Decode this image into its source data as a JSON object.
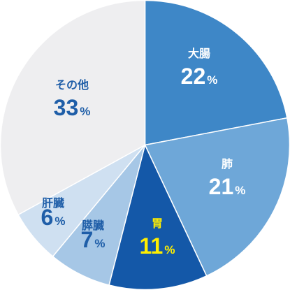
{
  "chart_data": {
    "type": "pie",
    "start": "12 o'clock",
    "direction": "clockwise",
    "slices": [
      {
        "label": "大腸",
        "value": 22,
        "unit": "%",
        "color": "#3e87c7",
        "text_color": "#ffffff",
        "name_color": "#ffffff"
      },
      {
        "label": "肺",
        "value": 21,
        "unit": "%",
        "color": "#6ea7d8",
        "text_color": "#ffffff",
        "name_color": "#ffffff"
      },
      {
        "label": "胃",
        "value": 11,
        "unit": "%",
        "color": "#1458a8",
        "text_color": "#ffee00",
        "name_color": "#ffee00"
      },
      {
        "label": "膵臓",
        "value": 7,
        "unit": "%",
        "color": "#a6c7e6",
        "text_color": "#1f5ea8",
        "name_color": "#1f5ea8"
      },
      {
        "label": "肝臓",
        "value": 6,
        "unit": "%",
        "color": "#cfe0f1",
        "text_color": "#1f5ea8",
        "name_color": "#1f5ea8"
      },
      {
        "label": "その他",
        "value": 33,
        "unit": "%",
        "color": "#eeeef0",
        "text_color": "#1f5ea8",
        "name_color": "#1f5ea8"
      }
    ]
  }
}
